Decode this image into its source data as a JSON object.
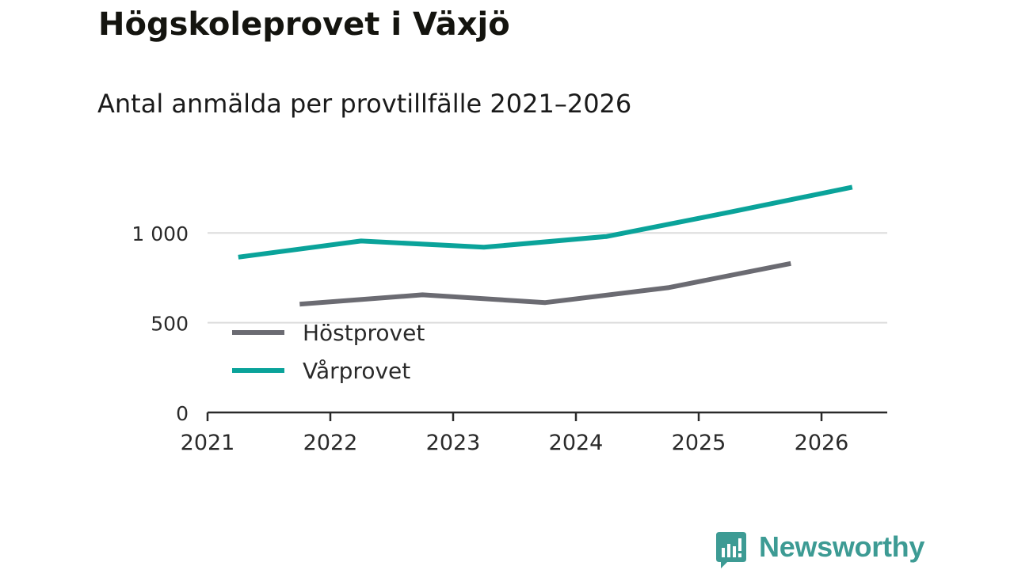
{
  "header": {
    "title": "Högskoleprovet i Växjö",
    "subtitle": "Antal anmälda per provtillfälle 2021–2026"
  },
  "brand": {
    "name": "Newsworthy",
    "color": "#3d9b94"
  },
  "chart_data": {
    "type": "line",
    "title": "Högskoleprovet i Växjö",
    "subtitle": "Antal anmälda per provtillfälle 2021–2026",
    "xlabel": "",
    "ylabel": "",
    "x_ticks": [
      "2021",
      "2022",
      "2023",
      "2024",
      "2025",
      "2026"
    ],
    "y_ticks": [
      {
        "value": 0,
        "label": "0"
      },
      {
        "value": 500,
        "label": "500"
      },
      {
        "value": 1000,
        "label": "1 000"
      }
    ],
    "ylim": [
      0,
      1260
    ],
    "xlim": [
      2021,
      2026.55
    ],
    "grid": true,
    "legend_position": "lower-left",
    "series": [
      {
        "name": "Höstprovet",
        "color": "#6b6b72",
        "points": [
          {
            "x": 2021.75,
            "y": 603
          },
          {
            "x": 2022.75,
            "y": 655
          },
          {
            "x": 2023.75,
            "y": 612
          },
          {
            "x": 2024.75,
            "y": 695
          },
          {
            "x": 2025.75,
            "y": 830
          }
        ]
      },
      {
        "name": "Vårprovet",
        "color": "#0aa39a",
        "points": [
          {
            "x": 2021.25,
            "y": 865
          },
          {
            "x": 2022.25,
            "y": 955
          },
          {
            "x": 2023.25,
            "y": 920
          },
          {
            "x": 2024.25,
            "y": 980
          },
          {
            "x": 2025.25,
            "y": 1115
          },
          {
            "x": 2026.25,
            "y": 1255
          }
        ]
      }
    ]
  }
}
